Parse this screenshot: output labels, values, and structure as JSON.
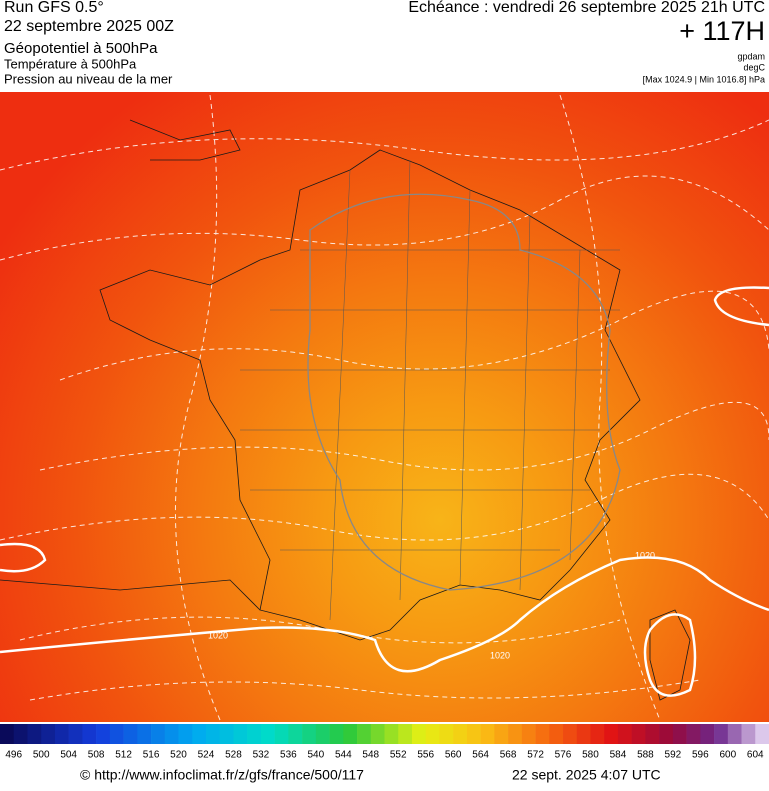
{
  "header": {
    "run": "Run GFS 0.5°",
    "date": "22 septembre 2025 00Z",
    "field": "Géopotentiel à 500hPa",
    "temperature": "Température à 500hPa",
    "pressure": "Pression au niveau de la mer",
    "echeance": "Echéance : vendredi 26 septembre 2025 21h UTC",
    "hour": "+ 117H",
    "unit_geo": "gpdam",
    "unit_temp": "degC",
    "maxmin": "[Max 1024.9 | Min 1016.8] hPa"
  },
  "map": {
    "contour_labels": [
      "1020",
      "1020",
      "1020"
    ]
  },
  "colorbar": {
    "labels": [
      496,
      500,
      504,
      508,
      512,
      516,
      520,
      524,
      528,
      532,
      536,
      540,
      544,
      548,
      552,
      556,
      560,
      564,
      568,
      572,
      576,
      580,
      584,
      588,
      592,
      596,
      600,
      604
    ]
  },
  "footer": {
    "url": "© http://www.infoclimat.fr/z/gfs/france/500/117",
    "timestamp": "22 sept. 2025  4:07 UTC"
  }
}
